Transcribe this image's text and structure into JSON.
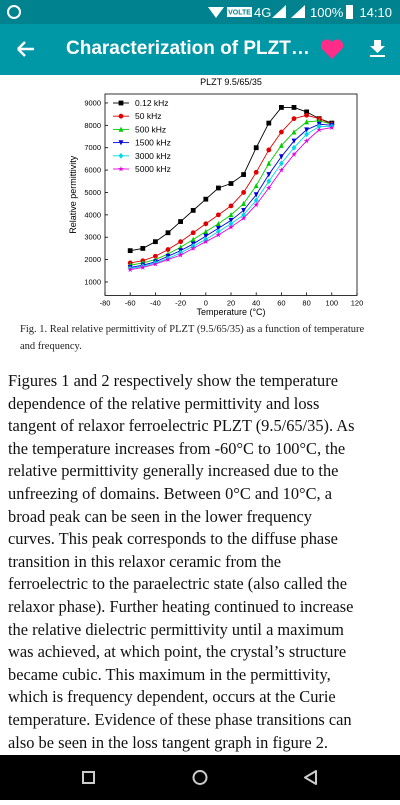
{
  "status_bar": {
    "network": "VOLTE",
    "signal": "4G",
    "battery": "100%",
    "time": "14:10"
  },
  "app_bar": {
    "title": "Characterization of PLZT…"
  },
  "chart_data": {
    "type": "line",
    "title": "PLZT 9.5/65/35",
    "x_label": "Temperature (°C)",
    "y_label": "Relative permittivity",
    "x": [
      -60,
      -50,
      -40,
      -30,
      -20,
      -10,
      0,
      10,
      20,
      30,
      40,
      50,
      60,
      70,
      80,
      90,
      100
    ],
    "xlim": [
      -80,
      120
    ],
    "xticks": [
      -80,
      -60,
      -40,
      -20,
      0,
      20,
      40,
      60,
      80,
      100,
      120
    ],
    "ylim": [
      400,
      9400
    ],
    "yticks": [
      1000,
      2000,
      3000,
      4000,
      5000,
      6000,
      7000,
      8000,
      9000
    ],
    "legend": "top-left",
    "series": [
      {
        "name": "0.12 kHz",
        "color": "#000000",
        "marker": "square",
        "values": [
          2400,
          2500,
          2800,
          3200,
          3700,
          4200,
          4700,
          5200,
          5400,
          5800,
          7000,
          8100,
          8800,
          8800,
          8600,
          8300,
          8100
        ]
      },
      {
        "name": "50 kHz",
        "color": "#e00000",
        "marker": "circle",
        "values": [
          1850,
          1950,
          2150,
          2450,
          2800,
          3200,
          3600,
          4000,
          4400,
          5000,
          5900,
          6900,
          7700,
          8300,
          8450,
          8300,
          8050
        ]
      },
      {
        "name": "500 kHz",
        "color": "#00cc00",
        "marker": "triangle-up",
        "values": [
          1750,
          1850,
          2000,
          2250,
          2550,
          2900,
          3250,
          3600,
          4000,
          4500,
          5300,
          6300,
          7100,
          7700,
          8150,
          8200,
          8050
        ]
      },
      {
        "name": "1500 kHz",
        "color": "#0000dd",
        "marker": "triangle-down",
        "values": [
          1650,
          1750,
          1900,
          2150,
          2400,
          2700,
          3050,
          3400,
          3750,
          4200,
          4900,
          5800,
          6600,
          7300,
          7800,
          8050,
          8000
        ]
      },
      {
        "name": "3000 kHz",
        "color": "#00d8e8",
        "marker": "diamond",
        "values": [
          1600,
          1700,
          1850,
          2050,
          2300,
          2600,
          2900,
          3250,
          3600,
          4000,
          4650,
          5500,
          6300,
          7000,
          7600,
          7950,
          7950
        ]
      },
      {
        "name": "5000 kHz",
        "color": "#e000e0",
        "marker": "star",
        "values": [
          1550,
          1650,
          1800,
          2000,
          2200,
          2500,
          2800,
          3100,
          3450,
          3850,
          4450,
          5200,
          6000,
          6700,
          7300,
          7800,
          7900
        ]
      }
    ]
  },
  "figure_caption": "Fig. 1. Real relative permittivity of PLZT (9.5/65/35) as a function of temperature and frequency.",
  "paragraph": {
    "lines": [
      "Figures 1 and 2 respectively show the temperature",
      "dependence of the relative permittivity and loss",
      "tangent of relaxor ferroelectric PLZT (9.5/65/35). As",
      "the temperature increases from -60°C to 100°C, the",
      "relative permittivity generally increased due to the",
      "unfreezing of domains. Between 0°C and 10°C, a",
      "broad peak can be seen in the lower frequency",
      "curves. This peak corresponds to the diffuse phase",
      "transition in this relaxor ceramic from the",
      "ferroelectric to the paraelectric state (also called the",
      "relaxor phase). Further heating continued to increase",
      "the relative dielectric permittivity until a maximum",
      "was achieved, at which point, the crystal’s structure",
      "became cubic. This maximum in the permittivity,",
      "which is frequency dependent, occurs at the Curie",
      "temperature. Evidence of these phase transitions can",
      "also be seen in the loss tangent graph in figure 2."
    ]
  }
}
